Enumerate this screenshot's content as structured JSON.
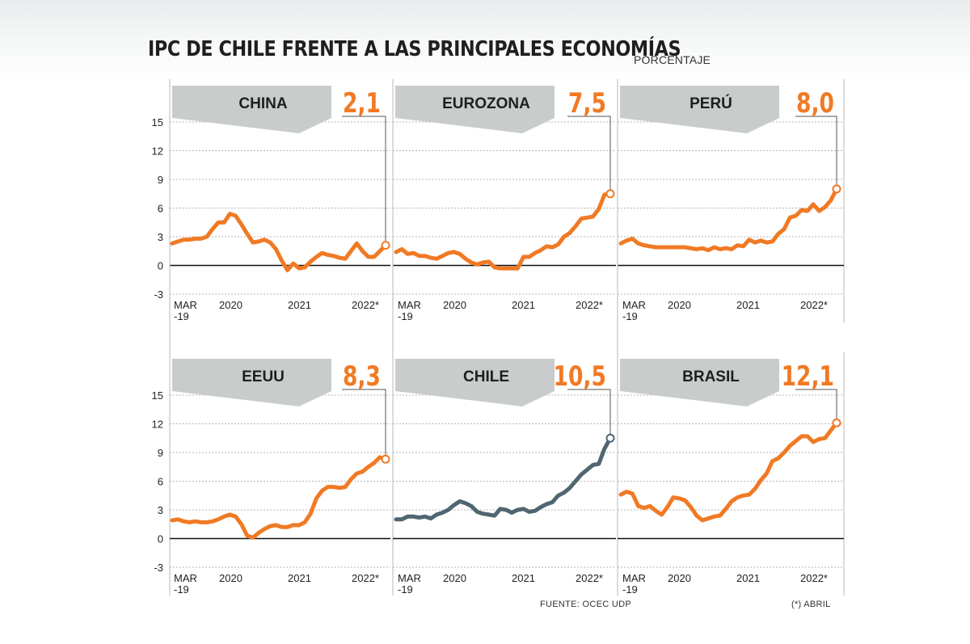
{
  "title": "IPC DE CHILE FRENTE A LAS PRINCIPALES ECONOMÍAS",
  "subtitle": "PORCENTAJE",
  "footer": {
    "source": "FUENTE: OCEC UDP",
    "note": "(*) ABRIL"
  },
  "colors": {
    "accent": "#f07a24",
    "chile": "#4f6671",
    "banner": "#c8cccb",
    "text": "#1f1f1f"
  },
  "chart_data": [
    {
      "type": "line",
      "panel": "CHINA",
      "latest_label": "2,1",
      "y_ticks": [
        "15",
        "12",
        "9",
        "6",
        "3",
        "0",
        "-3"
      ],
      "x_ticks": [
        "MAR\n-19",
        "2020",
        "2021",
        "2022*"
      ],
      "ylim": [
        -3,
        15
      ],
      "x": [
        "2019-03",
        "2019-04",
        "2019-05",
        "2019-06",
        "2019-07",
        "2019-08",
        "2019-09",
        "2019-10",
        "2019-11",
        "2019-12",
        "2020-01",
        "2020-02",
        "2020-03",
        "2020-04",
        "2020-05",
        "2020-06",
        "2020-07",
        "2020-08",
        "2020-09",
        "2020-10",
        "2020-11",
        "2020-12",
        "2021-01",
        "2021-02",
        "2021-03",
        "2021-04",
        "2021-05",
        "2021-06",
        "2021-07",
        "2021-08",
        "2021-09",
        "2021-10",
        "2021-11",
        "2021-12",
        "2022-01",
        "2022-02",
        "2022-03",
        "2022-04"
      ],
      "series": [
        {
          "values": [
            2.3,
            2.5,
            2.7,
            2.7,
            2.8,
            2.8,
            3.0,
            3.8,
            4.5,
            4.5,
            5.4,
            5.2,
            4.3,
            3.3,
            2.4,
            2.5,
            2.7,
            2.4,
            1.7,
            0.5,
            -0.5,
            0.2,
            -0.3,
            -0.2,
            0.4,
            0.9,
            1.3,
            1.1,
            1.0,
            0.8,
            0.7,
            1.5,
            2.3,
            1.5,
            0.9,
            0.9,
            1.5,
            2.1
          ]
        }
      ]
    },
    {
      "type": "line",
      "panel": "EUROZONA",
      "latest_label": "7,5",
      "y_ticks": [],
      "x_ticks": [
        "MAR\n-19",
        "2020",
        "2021",
        "2022*"
      ],
      "ylim": [
        -3,
        15
      ],
      "x": [
        "2019-03",
        "2019-04",
        "2019-05",
        "2019-06",
        "2019-07",
        "2019-08",
        "2019-09",
        "2019-10",
        "2019-11",
        "2019-12",
        "2020-01",
        "2020-02",
        "2020-03",
        "2020-04",
        "2020-05",
        "2020-06",
        "2020-07",
        "2020-08",
        "2020-09",
        "2020-10",
        "2020-11",
        "2020-12",
        "2021-01",
        "2021-02",
        "2021-03",
        "2021-04",
        "2021-05",
        "2021-06",
        "2021-07",
        "2021-08",
        "2021-09",
        "2021-10",
        "2021-11",
        "2021-12",
        "2022-01",
        "2022-02",
        "2022-03",
        "2022-04"
      ],
      "series": [
        {
          "values": [
            1.4,
            1.7,
            1.2,
            1.3,
            1.0,
            1.0,
            0.8,
            0.7,
            1.0,
            1.3,
            1.4,
            1.2,
            0.7,
            0.3,
            0.1,
            0.3,
            0.4,
            -0.2,
            -0.3,
            -0.3,
            -0.3,
            -0.3,
            0.9,
            0.9,
            1.3,
            1.6,
            2.0,
            1.9,
            2.2,
            3.0,
            3.4,
            4.1,
            4.9,
            5.0,
            5.1,
            5.9,
            7.4,
            7.5
          ]
        }
      ]
    },
    {
      "type": "line",
      "panel": "PERÚ",
      "latest_label": "8,0",
      "y_ticks": [],
      "x_ticks": [
        "MAR\n-19",
        "2020",
        "2021",
        "2022*"
      ],
      "ylim": [
        -3,
        15
      ],
      "x": [
        "2019-03",
        "2019-04",
        "2019-05",
        "2019-06",
        "2019-07",
        "2019-08",
        "2019-09",
        "2019-10",
        "2019-11",
        "2019-12",
        "2020-01",
        "2020-02",
        "2020-03",
        "2020-04",
        "2020-05",
        "2020-06",
        "2020-07",
        "2020-08",
        "2020-09",
        "2020-10",
        "2020-11",
        "2020-12",
        "2021-01",
        "2021-02",
        "2021-03",
        "2021-04",
        "2021-05",
        "2021-06",
        "2021-07",
        "2021-08",
        "2021-09",
        "2021-10",
        "2021-11",
        "2021-12",
        "2022-01",
        "2022-02",
        "2022-03",
        "2022-04"
      ],
      "series": [
        {
          "values": [
            2.3,
            2.6,
            2.8,
            2.3,
            2.1,
            2.0,
            1.9,
            1.9,
            1.9,
            1.9,
            1.9,
            1.9,
            1.8,
            1.7,
            1.8,
            1.6,
            1.9,
            1.7,
            1.8,
            1.7,
            2.1,
            2.0,
            2.7,
            2.4,
            2.6,
            2.4,
            2.5,
            3.3,
            3.8,
            5.0,
            5.2,
            5.8,
            5.7,
            6.4,
            5.7,
            6.1,
            6.8,
            8.0
          ]
        }
      ]
    },
    {
      "type": "line",
      "panel": "EEUU",
      "latest_label": "8,3",
      "y_ticks": [
        "15",
        "12",
        "9",
        "6",
        "3",
        "0",
        "-3"
      ],
      "x_ticks": [
        "MAR\n-19",
        "2020",
        "2021",
        "2022*"
      ],
      "ylim": [
        -3,
        15
      ],
      "x": [
        "2019-03",
        "2019-04",
        "2019-05",
        "2019-06",
        "2019-07",
        "2019-08",
        "2019-09",
        "2019-10",
        "2019-11",
        "2019-12",
        "2020-01",
        "2020-02",
        "2020-03",
        "2020-04",
        "2020-05",
        "2020-06",
        "2020-07",
        "2020-08",
        "2020-09",
        "2020-10",
        "2020-11",
        "2020-12",
        "2021-01",
        "2021-02",
        "2021-03",
        "2021-04",
        "2021-05",
        "2021-06",
        "2021-07",
        "2021-08",
        "2021-09",
        "2021-10",
        "2021-11",
        "2021-12",
        "2022-01",
        "2022-02",
        "2022-03",
        "2022-04"
      ],
      "series": [
        {
          "values": [
            1.9,
            2.0,
            1.8,
            1.7,
            1.8,
            1.7,
            1.7,
            1.8,
            2.0,
            2.3,
            2.5,
            2.3,
            1.5,
            0.3,
            0.1,
            0.6,
            1.0,
            1.3,
            1.4,
            1.2,
            1.2,
            1.4,
            1.4,
            1.7,
            2.6,
            4.2,
            5.0,
            5.4,
            5.4,
            5.3,
            5.4,
            6.2,
            6.8,
            7.0,
            7.5,
            7.9,
            8.5,
            8.3
          ]
        }
      ]
    },
    {
      "type": "line",
      "panel": "CHILE",
      "latest_label": "10,5",
      "y_ticks": [],
      "x_ticks": [
        "MAR\n-19",
        "2020",
        "2021",
        "2022*"
      ],
      "ylim": [
        -3,
        15
      ],
      "x": [
        "2019-03",
        "2019-04",
        "2019-05",
        "2019-06",
        "2019-07",
        "2019-08",
        "2019-09",
        "2019-10",
        "2019-11",
        "2019-12",
        "2020-01",
        "2020-02",
        "2020-03",
        "2020-04",
        "2020-05",
        "2020-06",
        "2020-07",
        "2020-08",
        "2020-09",
        "2020-10",
        "2020-11",
        "2020-12",
        "2021-01",
        "2021-02",
        "2021-03",
        "2021-04",
        "2021-05",
        "2021-06",
        "2021-07",
        "2021-08",
        "2021-09",
        "2021-10",
        "2021-11",
        "2021-12",
        "2022-01",
        "2022-02",
        "2022-03",
        "2022-04"
      ],
      "series": [
        {
          "values": [
            2.0,
            2.0,
            2.3,
            2.3,
            2.2,
            2.3,
            2.1,
            2.5,
            2.7,
            3.0,
            3.5,
            3.9,
            3.7,
            3.4,
            2.8,
            2.6,
            2.5,
            2.4,
            3.1,
            3.0,
            2.7,
            3.0,
            3.1,
            2.8,
            2.9,
            3.3,
            3.6,
            3.8,
            4.5,
            4.8,
            5.3,
            6.0,
            6.7,
            7.2,
            7.7,
            7.8,
            9.4,
            10.5
          ]
        }
      ]
    },
    {
      "type": "line",
      "panel": "BRASIL",
      "latest_label": "12,1",
      "y_ticks": [],
      "x_ticks": [
        "MAR\n-19",
        "2020",
        "2021",
        "2022*"
      ],
      "ylim": [
        -3,
        15
      ],
      "x": [
        "2019-03",
        "2019-04",
        "2019-05",
        "2019-06",
        "2019-07",
        "2019-08",
        "2019-09",
        "2019-10",
        "2019-11",
        "2019-12",
        "2020-01",
        "2020-02",
        "2020-03",
        "2020-04",
        "2020-05",
        "2020-06",
        "2020-07",
        "2020-08",
        "2020-09",
        "2020-10",
        "2020-11",
        "2020-12",
        "2021-01",
        "2021-02",
        "2021-03",
        "2021-04",
        "2021-05",
        "2021-06",
        "2021-07",
        "2021-08",
        "2021-09",
        "2021-10",
        "2021-11",
        "2021-12",
        "2022-01",
        "2022-02",
        "2022-03",
        "2022-04"
      ],
      "series": [
        {
          "values": [
            4.6,
            4.9,
            4.7,
            3.4,
            3.2,
            3.4,
            2.9,
            2.5,
            3.3,
            4.3,
            4.2,
            4.0,
            3.3,
            2.4,
            1.9,
            2.1,
            2.3,
            2.4,
            3.1,
            3.9,
            4.3,
            4.5,
            4.6,
            5.2,
            6.1,
            6.8,
            8.1,
            8.4,
            9.0,
            9.7,
            10.2,
            10.7,
            10.7,
            10.1,
            10.4,
            10.5,
            11.3,
            12.1
          ]
        }
      ]
    }
  ]
}
